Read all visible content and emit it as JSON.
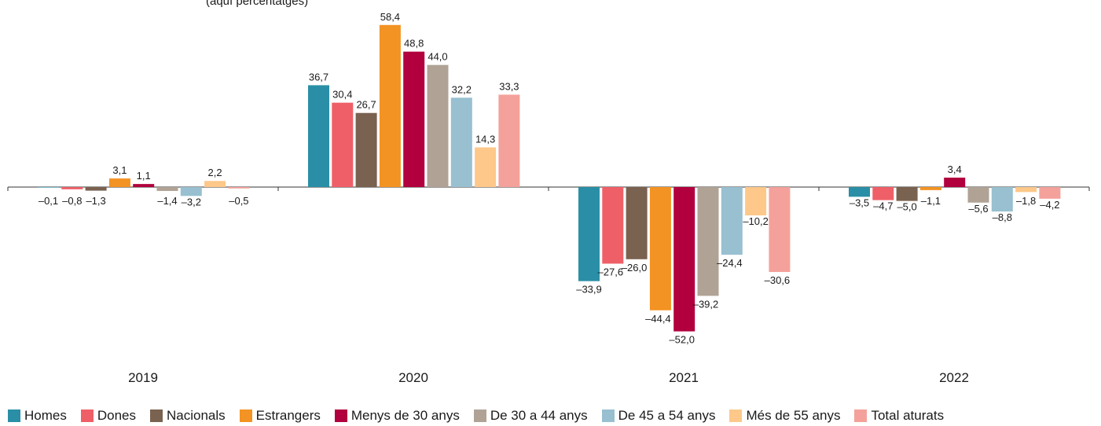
{
  "title_fragment": "(aquí percentatges)",
  "chart_data": {
    "type": "bar",
    "categories": [
      "2019",
      "2020",
      "2021",
      "2022"
    ],
    "series": [
      {
        "name": "Homes",
        "color": "#2a8fa6",
        "values": [
          -0.1,
          36.7,
          -33.9,
          -3.5
        ]
      },
      {
        "name": "Dones",
        "color": "#ef5f67",
        "values": [
          -0.8,
          30.4,
          -27.6,
          -4.7
        ]
      },
      {
        "name": "Nacionals",
        "color": "#7a6250",
        "values": [
          -1.3,
          26.7,
          -26.0,
          -5.0
        ]
      },
      {
        "name": "Estrangers",
        "color": "#f39323",
        "values": [
          3.1,
          58.4,
          -44.4,
          -1.1
        ]
      },
      {
        "name": "Menys de 30 anys",
        "color": "#b1003d",
        "values": [
          1.1,
          48.8,
          -52.0,
          3.4
        ]
      },
      {
        "name": "De 30 a 44 anys",
        "color": "#b0a396",
        "values": [
          -1.4,
          44.0,
          -39.2,
          -5.6
        ]
      },
      {
        "name": "De 45 a 54 anys",
        "color": "#98c0d0",
        "values": [
          -3.2,
          32.2,
          -24.4,
          -8.8
        ]
      },
      {
        "name": "Més de 55 anys",
        "color": "#fdc88a",
        "values": [
          2.2,
          14.3,
          -10.2,
          -1.8
        ]
      },
      {
        "name": "Total aturats",
        "color": "#f4a19b",
        "values": [
          -0.5,
          33.3,
          -30.6,
          -4.2
        ]
      }
    ],
    "value_labels": [
      [
        "–0,1",
        "36,7",
        "–33,9",
        "–3,5"
      ],
      [
        "–0,8",
        "30,4",
        "–27,6",
        "–4,7"
      ],
      [
        "–1,3",
        "26,7",
        "–26,0",
        "–5,0"
      ],
      [
        "3,1",
        "58,4",
        "–44,4",
        "–1,1"
      ],
      [
        "1,1",
        "48,8",
        "–52,0",
        "3,4"
      ],
      [
        "–1,4",
        "44,0",
        "–39,2",
        "–5,6"
      ],
      [
        "–3,2",
        "32,2",
        "–24,4",
        "–8,8"
      ],
      [
        "2,2",
        "14,3",
        "–10,2",
        "–1,8"
      ],
      [
        "–0,5",
        "33,3",
        "–30,6",
        "–4,2"
      ]
    ],
    "legend_position": "bottom",
    "grid": false
  }
}
